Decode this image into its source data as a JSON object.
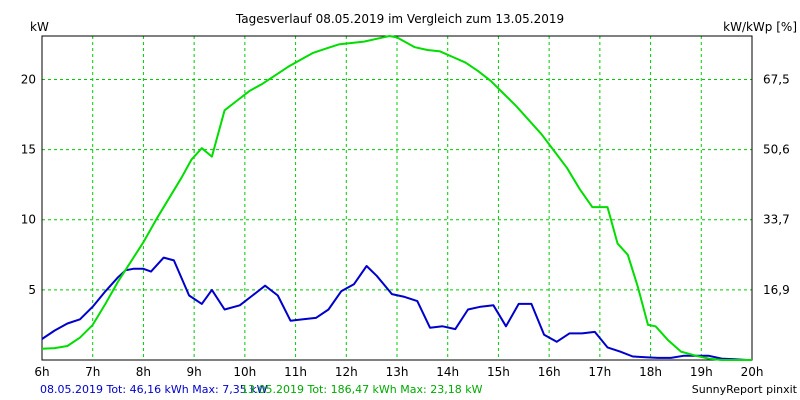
{
  "chart_data": {
    "type": "line",
    "title": "Tagesverlauf 08.05.2019 im Vergleich zum 13.05.2019",
    "ylabel_left": "kW",
    "ylabel_right": "kW/kWp [%]",
    "xlim": [
      6,
      20
    ],
    "ylim": [
      0,
      23.1
    ],
    "x_tick_labels": [
      "6h",
      "7h",
      "8h",
      "9h",
      "10h",
      "11h",
      "12h",
      "13h",
      "14h",
      "15h",
      "16h",
      "17h",
      "18h",
      "19h",
      "20h"
    ],
    "y_ticks_left": [
      5,
      10,
      15,
      20
    ],
    "y_ticks_right": [
      "16,9",
      "33,7",
      "50,6",
      "67,5"
    ],
    "grid": true,
    "series": [
      {
        "name": "08.05.2019",
        "color": "#0000cc",
        "x": [
          6.0,
          6.25,
          6.5,
          6.75,
          7.0,
          7.25,
          7.5,
          7.65,
          7.8,
          8.0,
          8.15,
          8.4,
          8.6,
          8.9,
          9.15,
          9.35,
          9.6,
          9.9,
          10.15,
          10.4,
          10.65,
          10.9,
          11.15,
          11.4,
          11.65,
          11.9,
          12.15,
          12.4,
          12.6,
          12.9,
          13.15,
          13.4,
          13.65,
          13.9,
          14.15,
          14.4,
          14.65,
          14.9,
          15.15,
          15.4,
          15.65,
          15.9,
          16.15,
          16.4,
          16.65,
          16.9,
          17.15,
          17.4,
          17.65,
          17.9,
          18.15,
          18.4,
          18.65,
          18.9,
          19.15,
          19.4,
          19.65,
          19.9,
          20.0
        ],
        "values": [
          1.5,
          2.1,
          2.6,
          2.9,
          3.8,
          4.9,
          5.9,
          6.4,
          6.5,
          6.5,
          6.3,
          7.3,
          7.1,
          4.6,
          4.0,
          5.0,
          3.6,
          3.9,
          4.6,
          5.3,
          4.6,
          2.8,
          2.9,
          3.0,
          3.6,
          4.9,
          5.4,
          6.7,
          6.0,
          4.7,
          4.5,
          4.2,
          2.3,
          2.4,
          2.2,
          3.6,
          3.8,
          3.9,
          2.4,
          4.0,
          4.0,
          1.8,
          1.3,
          1.9,
          1.9,
          2.0,
          0.9,
          0.6,
          0.25,
          0.2,
          0.15,
          0.15,
          0.3,
          0.3,
          0.3,
          0.1,
          0.05,
          0.0,
          0.0
        ]
      },
      {
        "name": "13.05.2019",
        "color": "#00dd00",
        "x": [
          6.0,
          6.25,
          6.5,
          6.75,
          7.0,
          7.25,
          7.5,
          7.75,
          8.0,
          8.25,
          8.5,
          8.75,
          8.95,
          9.15,
          9.35,
          9.6,
          9.85,
          10.1,
          10.35,
          10.6,
          10.85,
          11.1,
          11.35,
          11.6,
          11.85,
          12.1,
          12.35,
          12.6,
          12.85,
          13.0,
          13.15,
          13.35,
          13.6,
          13.85,
          14.1,
          14.35,
          14.6,
          14.85,
          15.1,
          15.35,
          15.6,
          15.85,
          16.1,
          16.35,
          16.6,
          16.85,
          16.95,
          17.15,
          17.35,
          17.55,
          17.75,
          17.95,
          18.1,
          18.35,
          18.6,
          18.9,
          19.15,
          19.4,
          19.65,
          19.9,
          20.0
        ],
        "values": [
          0.8,
          0.85,
          1.0,
          1.6,
          2.5,
          4.0,
          5.6,
          7.0,
          8.4,
          10.0,
          11.5,
          13.0,
          14.3,
          15.1,
          14.5,
          17.8,
          18.5,
          19.2,
          19.7,
          20.3,
          20.9,
          21.4,
          21.9,
          22.2,
          22.5,
          22.6,
          22.7,
          22.9,
          23.1,
          23.0,
          22.7,
          22.3,
          22.1,
          22.0,
          21.6,
          21.2,
          20.6,
          19.9,
          19.0,
          18.1,
          17.1,
          16.1,
          14.9,
          13.7,
          12.2,
          10.9,
          10.9,
          10.9,
          8.3,
          7.5,
          5.2,
          2.5,
          2.4,
          1.4,
          0.6,
          0.3,
          0.1,
          0.0,
          0.0,
          0.0,
          0.0
        ]
      }
    ]
  },
  "footer": {
    "legend_blue": "08.05.2019 Tot: 46,16 kWh Max: 7,35 kW",
    "legend_green": "13.05.2019 Tot: 186,47 kWh Max: 23,18 kW",
    "brand": "SunnyReport pinxit"
  }
}
